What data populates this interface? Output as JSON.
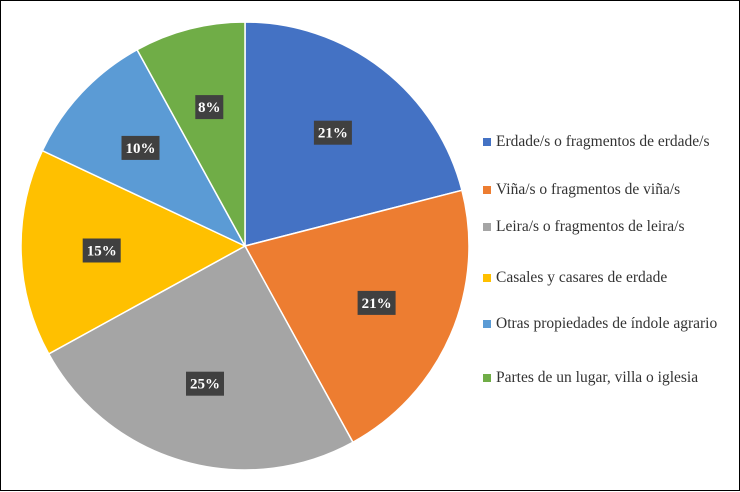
{
  "chart_data": {
    "type": "pie",
    "title": "",
    "legend_position": "right",
    "categories": [
      "Erdade/s o fragmentos de erdade/s",
      "Viña/s o fragmentos de viña/s",
      "Leira/s o fragmentos de leira/s",
      "Casales y casares de erdade",
      "Otras propiedades de índole agrario",
      "Partes de un lugar, villa o iglesia"
    ],
    "values": [
      21,
      21,
      25,
      15,
      10,
      8
    ],
    "data_labels": [
      "21%",
      "21%",
      "25%",
      "15%",
      "10%",
      "8%"
    ],
    "colors": [
      "#4472C4",
      "#ED7D31",
      "#A5A5A5",
      "#FFC000",
      "#5B9BD5",
      "#70AD47"
    ]
  }
}
